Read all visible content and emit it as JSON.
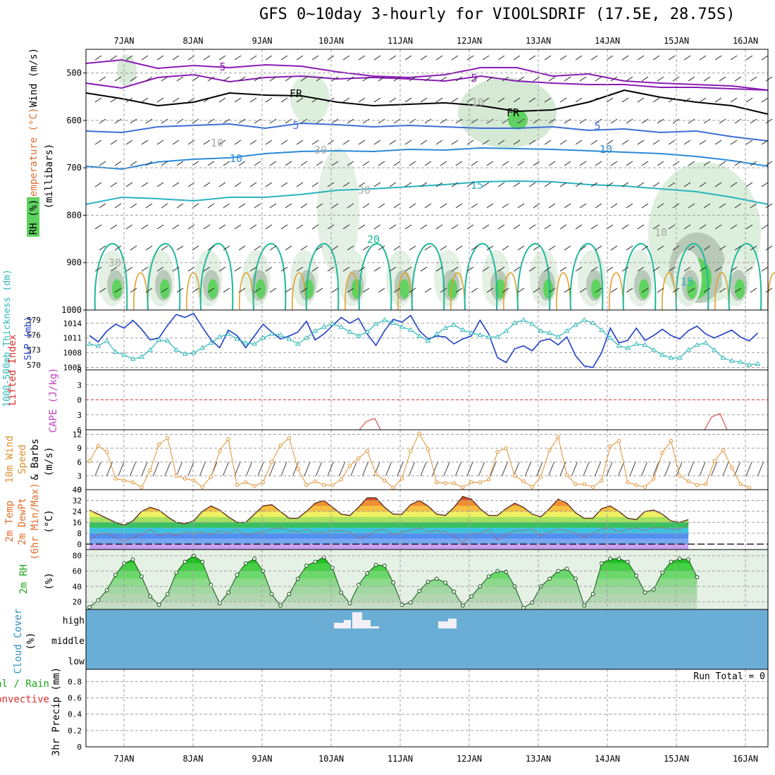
{
  "title": "GFS 0~10day 3-hourly for VIOOLSDRIF (17.5E, 28.75S)",
  "colors": {
    "rh_green": "#5fd35f",
    "rh_light": "#e3f0e3",
    "wind5": "#8a1bb5",
    "wind10": "#3d6fd6",
    "temp10": "#2b8ad8",
    "temp15": "#2ab3c0",
    "temp20": "#1fb89a",
    "slp": "#1f3ec8",
    "thick": "#2fb8b8",
    "lifted": "#e03030",
    "cape": "#c040c0",
    "wind10m": "#e09030",
    "cloud": "#6aaed6",
    "precip_total": "#1fa81f",
    "precip_conv": "#e03030"
  },
  "chart_data": [
    {
      "type": "area",
      "panel": "upper_air",
      "ylabel_parts": [
        "Wind (m/s)",
        "Temperature (°C)",
        "RH (%)",
        "(millibars)"
      ],
      "y_ticks": [
        500,
        600,
        700,
        800,
        900,
        1000
      ],
      "ylim": [
        450,
        1000
      ],
      "x_ticks": [
        "7JAN",
        "8JAN",
        "9JAN",
        "10JAN",
        "11JAN",
        "12JAN",
        "13JAN",
        "14JAN",
        "15JAN",
        "16JAN"
      ],
      "contour_labels": [
        "5",
        "5",
        "FR",
        "FR",
        "5",
        "5",
        "10",
        "10",
        "15",
        "20",
        "15",
        "10",
        "30",
        "30",
        "30",
        "10",
        "10"
      ]
    },
    {
      "type": "line",
      "panel": "slp_thickness",
      "ylabel_left": "1000-500mb Thickness (dm)",
      "ylabel_right": "SLP (mb)",
      "left_ticks": [
        570,
        573,
        576,
        579
      ],
      "right_ticks": [
        1005,
        1008,
        1011,
        1014
      ],
      "series": [
        {
          "name": "SLP (mb)",
          "values": [
            1011.5,
            1010.2,
            1012.4,
            1013.8,
            1013.0,
            1014.6,
            1012.8,
            1010.6,
            1011.0,
            1013.6,
            1015.8,
            1015.2,
            1016.0,
            1013.2,
            1010.6,
            1009.0,
            1012.6,
            1011.5,
            1009.0,
            1011.4,
            1013.8,
            1012.2,
            1010.8,
            1011.4,
            1012.2,
            1014.4,
            1010.6,
            1011.8,
            1013.5,
            1015.2,
            1014.0,
            1015.0,
            1011.8,
            1009.5,
            1012.5,
            1014.8,
            1014.2,
            1015.6,
            1012.5,
            1010.8,
            1011.4,
            1011.2,
            1009.8,
            1010.8,
            1011.4,
            1014.6,
            1011.8,
            1007.0,
            1006.0,
            1008.8,
            1009.4,
            1008.4,
            1010.4,
            1010.8,
            1009.6,
            1011.2,
            1007.4,
            1005.3,
            1005.0,
            1008.0,
            1013.0,
            1010.0,
            1010.5,
            1013.0,
            1010.5,
            1011.5,
            1012.8,
            1011.5,
            1010.8,
            1012.5,
            1013.4,
            1011.8,
            1011.0,
            1011.8,
            1012.6,
            1011.2,
            1010.4,
            1012.0
          ]
        },
        {
          "name": "1000-500mb Thickness (dm)",
          "values": [
            574.2,
            573.8,
            574.8,
            572.6,
            572.0,
            571.2,
            571.6,
            573.0,
            575.0,
            574.8,
            573.0,
            572.2,
            572.4,
            573.4,
            574.4,
            575.6,
            576.2,
            575.2,
            574.4,
            574.2,
            575.4,
            576.2,
            576.0,
            575.2,
            574.2,
            575.4,
            576.8,
            577.6,
            578.2,
            577.6,
            576.6,
            575.8,
            576.6,
            578.2,
            579.0,
            578.4,
            577.6,
            577.0,
            575.8,
            574.8,
            576.2,
            577.4,
            578.0,
            577.0,
            576.4,
            576.0,
            575.6,
            575.6,
            576.8,
            578.4,
            579.0,
            578.2,
            576.8,
            576.4,
            575.6,
            576.8,
            578.0,
            579.0,
            578.4,
            577.0,
            575.4,
            573.8,
            573.4,
            574.2,
            574.0,
            573.0,
            572.0,
            571.4,
            571.4,
            573.0,
            574.0,
            574.4,
            573.0,
            571.4,
            570.8,
            570.6,
            570.0,
            570.2
          ]
        }
      ]
    },
    {
      "type": "line",
      "panel": "lifted_cape",
      "ylabel": "Lifted Index",
      "ylabel2": "CAPE (J/kg)",
      "y_ticks": [
        6,
        3,
        0,
        -3,
        -6
      ],
      "y_tick_labels": [
        "6",
        "3",
        "0",
        "3",
        "6"
      ],
      "ylim": [
        6,
        -6
      ]
    },
    {
      "type": "line",
      "panel": "wind_10m",
      "ylabel_parts": [
        "10m Wind",
        "Speed",
        "& Barbs",
        "(m/s)"
      ],
      "y_ticks": [
        0,
        3,
        6,
        9,
        12
      ],
      "ylim": [
        0,
        13
      ],
      "series": [
        {
          "name": "10m Wind Speed",
          "values": [
            6.2,
            9.5,
            8.2,
            2.4,
            2.0,
            1.6,
            0.5,
            4.2,
            9.8,
            11.2,
            3.0,
            2.4,
            2.0,
            0.6,
            2.8,
            8.4,
            11.0,
            1.0,
            1.6,
            0.8,
            1.6,
            6.0,
            9.6,
            11.2,
            4.6,
            1.0,
            1.8,
            1.0,
            1.0,
            2.2,
            5.2,
            6.8,
            8.4,
            3.4,
            2.0,
            0.4,
            2.4,
            8.4,
            12.2,
            8.8,
            1.6,
            1.4,
            1.4,
            0.5,
            1.6,
            1.6,
            2.2,
            8.2,
            9.0,
            3.0,
            1.8,
            0.6,
            2.8,
            8.6,
            11.4,
            3.2,
            1.2,
            1.2,
            0.6,
            2.0,
            9.4,
            10.6,
            1.6,
            1.0,
            0.6,
            2.4,
            8.0,
            10.6,
            3.0,
            1.8,
            1.0,
            1.2,
            6.2,
            8.6,
            4.8,
            1.2,
            0.4
          ]
        }
      ]
    },
    {
      "type": "area",
      "panel": "temperature_2m",
      "ylabel_parts": [
        "2m Temp",
        "2m DewPt",
        "(6hr Min/Max)",
        "(°C)"
      ],
      "y_ticks": [
        0,
        8,
        16,
        24,
        32,
        40
      ],
      "ylim": [
        -4,
        40
      ],
      "series": [
        {
          "name": "2m Temp",
          "values": [
            25,
            22,
            19,
            16,
            14,
            17,
            24,
            27,
            25,
            20,
            16,
            15,
            17,
            24,
            28,
            25,
            20,
            16,
            16,
            22,
            28,
            29,
            24,
            19,
            19,
            24,
            30,
            32,
            27,
            22,
            21,
            27,
            34,
            34,
            27,
            22,
            22,
            29,
            32,
            28,
            22,
            21,
            27,
            35,
            33,
            26,
            21,
            21,
            26,
            30,
            27,
            22,
            20,
            26,
            33,
            30,
            23,
            19,
            19,
            26,
            28,
            24,
            19,
            18,
            24,
            25,
            22,
            17,
            16,
            18
          ]
        },
        {
          "name": "2m DewPt",
          "values": [
            3,
            7,
            8,
            5,
            2,
            5,
            7,
            11,
            6,
            8,
            6,
            9,
            8,
            9,
            7,
            10,
            8,
            11,
            7,
            8,
            9,
            11,
            12,
            10,
            9,
            11,
            8,
            9,
            10,
            10,
            9,
            4,
            6,
            10,
            11,
            7,
            9,
            10,
            12,
            9,
            10,
            9,
            6,
            1,
            8,
            8,
            11,
            3,
            7,
            10,
            10,
            11,
            6,
            9,
            11,
            10,
            8,
            5,
            8,
            11,
            12,
            9,
            11,
            12,
            10,
            12,
            12,
            11,
            11,
            15
          ]
        }
      ]
    },
    {
      "type": "area",
      "panel": "rh_2m",
      "ylabel": "2m RH",
      "yunit": "(%)",
      "y_ticks": [
        20,
        40,
        60,
        80
      ],
      "ylim": [
        10,
        88
      ],
      "series": [
        {
          "name": "2m RH",
          "values": [
            13,
            22,
            35,
            55,
            70,
            75,
            53,
            27,
            16,
            30,
            58,
            72,
            80,
            72,
            42,
            18,
            32,
            55,
            70,
            76,
            60,
            30,
            15,
            30,
            50,
            67,
            72,
            78,
            64,
            32,
            18,
            42,
            57,
            68,
            67,
            45,
            16,
            19,
            34,
            46,
            50,
            45,
            33,
            15,
            27,
            40,
            53,
            60,
            59,
            40,
            12,
            19,
            40,
            50,
            60,
            63,
            50,
            15,
            30,
            70,
            76,
            76,
            72,
            54,
            32,
            36,
            58,
            72,
            76,
            75,
            52
          ]
        }
      ]
    },
    {
      "type": "bar",
      "panel": "cloud_cover",
      "ylabel": "Cloud Cover",
      "yunit": "(%)",
      "levels": [
        "high",
        "middle",
        "low"
      ]
    },
    {
      "type": "line",
      "panel": "precip_3hr",
      "ylabel": "3hr Precip (mm)",
      "legend": [
        "Total / Rain",
        "Convective"
      ],
      "y_ticks": [
        0,
        0.2,
        0.4,
        0.6,
        0.8
      ],
      "y_tick_labels": [
        "0",
        "0.2",
        "0.4",
        "0.6",
        "0.8"
      ],
      "ylim": [
        0,
        0.95
      ],
      "run_total": "Run Total = 0"
    }
  ]
}
